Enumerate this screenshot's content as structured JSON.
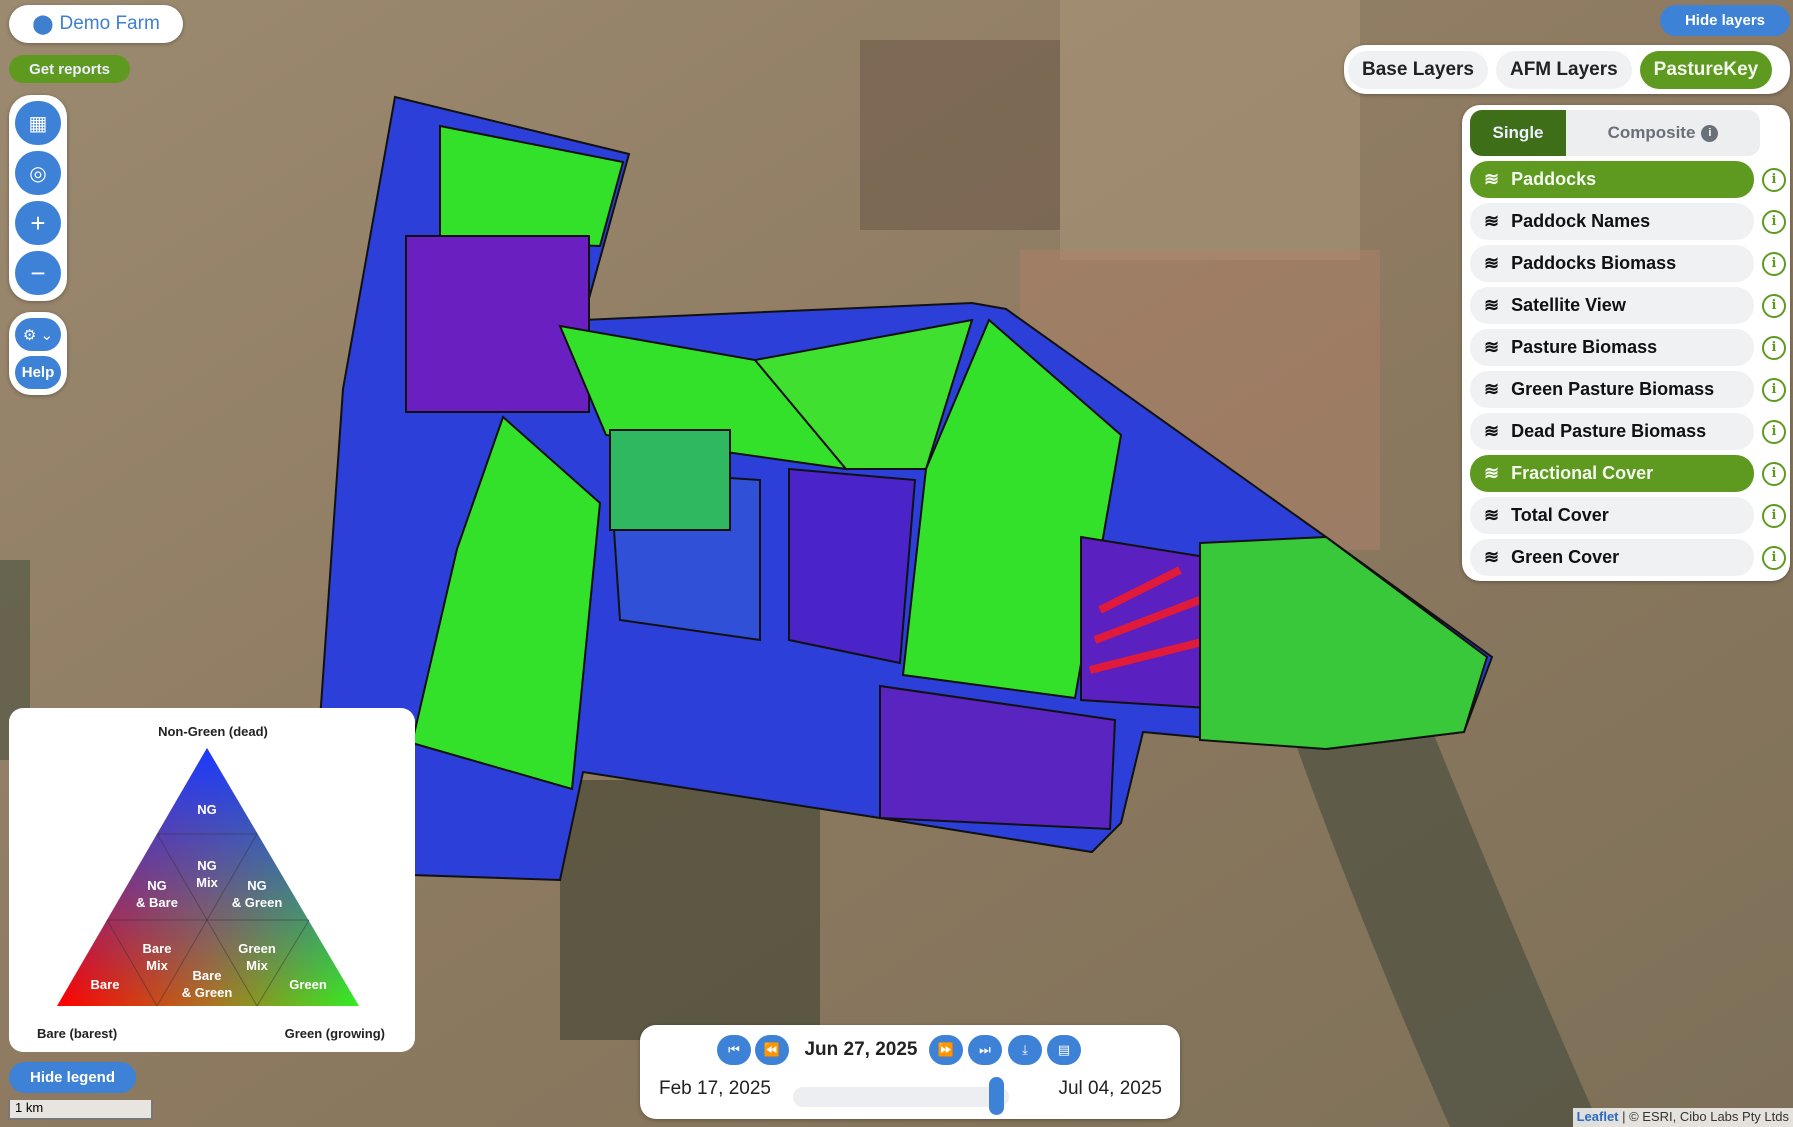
{
  "farm": {
    "name": "Demo Farm",
    "icon": "map-pin-icon"
  },
  "get_reports": "Get reports",
  "controls": {
    "items": [
      "map-icon",
      "locate-icon",
      "zoom-in-icon",
      "zoom-out-icon"
    ],
    "zoom_in": "+",
    "zoom_out": "−",
    "help": "Help"
  },
  "hide_layers": "Hide layers",
  "layer_tabs": [
    {
      "label": "Base Layers",
      "active": false
    },
    {
      "label": "AFM Layers",
      "active": false
    },
    {
      "label": "PastureKey",
      "active": true
    }
  ],
  "mode": {
    "single": "Single",
    "composite": "Composite"
  },
  "layers": [
    {
      "label": "Paddocks",
      "active": true
    },
    {
      "label": "Paddock Names",
      "active": false
    },
    {
      "label": "Paddocks Biomass",
      "active": false
    },
    {
      "label": "Satellite View",
      "active": false
    },
    {
      "label": "Pasture Biomass",
      "active": false
    },
    {
      "label": "Green Pasture Biomass",
      "active": false
    },
    {
      "label": "Dead Pasture Biomass",
      "active": false
    },
    {
      "label": "Fractional Cover",
      "active": true
    },
    {
      "label": "Total Cover",
      "active": false
    },
    {
      "label": "Green Cover",
      "active": false
    }
  ],
  "legend": {
    "top": "Non-Green (dead)",
    "left": "Bare (barest)",
    "right": "Green (growing)",
    "cells": {
      "ng": "NG",
      "ng_mix_1": "NG",
      "ng_mix_2": "Mix",
      "ng_bare_1": "NG",
      "ng_bare_2": "& Bare",
      "ng_green_1": "NG",
      "ng_green_2": "& Green",
      "bare": "Bare",
      "bare_mix_1": "Bare",
      "bare_mix_2": "Mix",
      "bare_green_1": "Bare",
      "bare_green_2": "& Green",
      "green_mix_1": "Green",
      "green_mix_2": "Mix",
      "green": "Green"
    }
  },
  "hide_legend": "Hide legend",
  "scale": "1 km",
  "timeline": {
    "current": "Jun 27, 2025",
    "start": "Feb 17, 2025",
    "end": "Jul 04, 2025",
    "position_fraction": 0.94
  },
  "attribution": {
    "leaflet": "Leaflet",
    "rest": " | © ESRI, Cibo Labs Pty Ltds"
  },
  "colors": {
    "accent_green": "#5e9a1f",
    "accent_blue": "#3d82d6"
  }
}
